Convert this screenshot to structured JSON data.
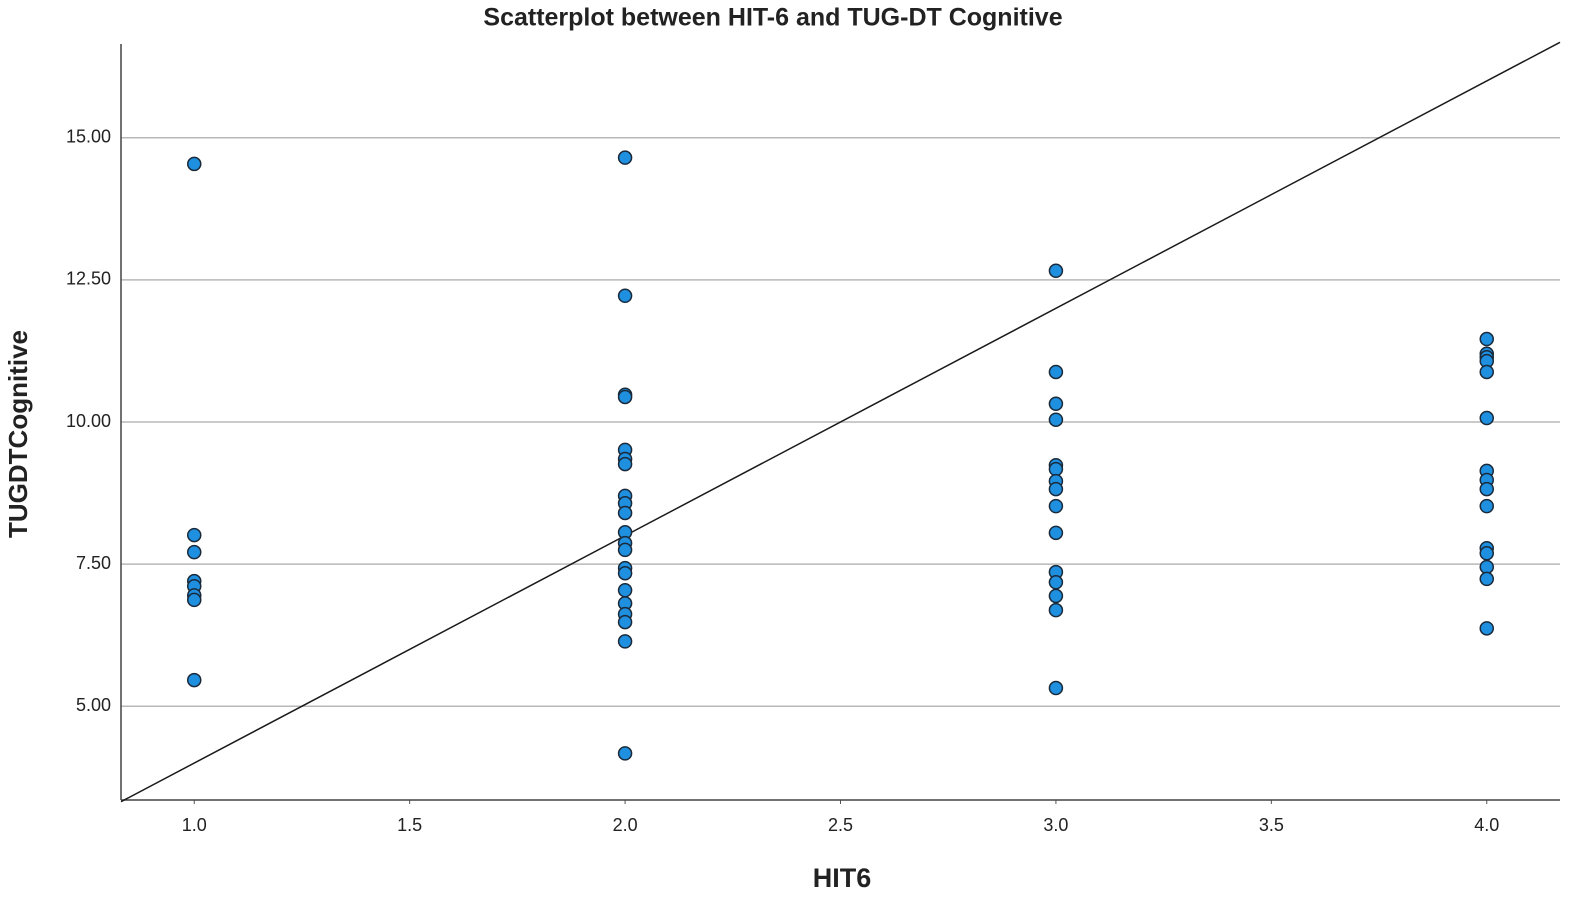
{
  "chart_data": {
    "type": "scatter",
    "title": "Scatterplot between HIT-6 and TUG-DT Cognitive",
    "x_label": "HIT6",
    "y_label": "TUGDTCognitive",
    "xlim": [
      0.83,
      4.17
    ],
    "ylim": [
      3.35,
      16.65
    ],
    "xticks": [
      {
        "value": 1,
        "label": "1.0"
      },
      {
        "value": 1.5,
        "label": "1.5"
      },
      {
        "value": 2,
        "label": "2.0"
      },
      {
        "value": 2.5,
        "label": "2.5"
      },
      {
        "value": 3,
        "label": "3.0"
      },
      {
        "value": 3.5,
        "label": "3.5"
      },
      {
        "value": 4,
        "label": "4.0"
      }
    ],
    "yticks": [
      {
        "value": 5,
        "label": "5.00"
      },
      {
        "value": 7.5,
        "label": "7.50"
      },
      {
        "value": 10,
        "label": "10.00"
      },
      {
        "value": 12.5,
        "label": "12.50"
      },
      {
        "value": 15,
        "label": "15.00"
      }
    ],
    "grid": true,
    "reference_line": {
      "x": [
        0.83,
        4.17
      ],
      "y": [
        3.32,
        16.68
      ],
      "color": "#1a1a1a"
    },
    "series": [
      {
        "color": "#1f8fe0",
        "x": [
          1,
          1,
          1,
          1,
          1,
          1,
          1,
          1,
          2,
          2,
          2,
          2,
          2,
          2,
          2,
          2,
          2,
          2,
          2,
          2,
          2,
          2,
          2,
          2,
          2,
          2,
          2,
          2,
          2,
          3,
          3,
          3,
          3,
          3,
          3,
          3,
          3,
          3,
          3,
          3,
          3,
          3,
          3,
          3,
          4,
          4,
          4,
          4,
          4,
          4,
          4,
          4,
          4,
          4,
          4,
          4,
          4,
          4,
          4
        ],
        "values": [
          14.54,
          8.01,
          7.71,
          7.2,
          7.11,
          6.95,
          6.87,
          5.46,
          14.65,
          12.22,
          10.48,
          10.44,
          9.51,
          9.35,
          9.26,
          8.7,
          8.57,
          8.4,
          8.06,
          7.87,
          7.75,
          7.43,
          7.34,
          7.04,
          6.81,
          6.62,
          6.48,
          6.14,
          4.17,
          12.66,
          10.88,
          10.32,
          10.04,
          9.24,
          9.17,
          8.96,
          8.82,
          8.52,
          8.05,
          7.36,
          7.18,
          6.94,
          6.69,
          5.32,
          11.46,
          11.2,
          11.14,
          11.07,
          10.88,
          10.07,
          9.14,
          8.98,
          8.82,
          8.52,
          7.78,
          7.69,
          7.45,
          7.24,
          6.37
        ]
      }
    ]
  }
}
